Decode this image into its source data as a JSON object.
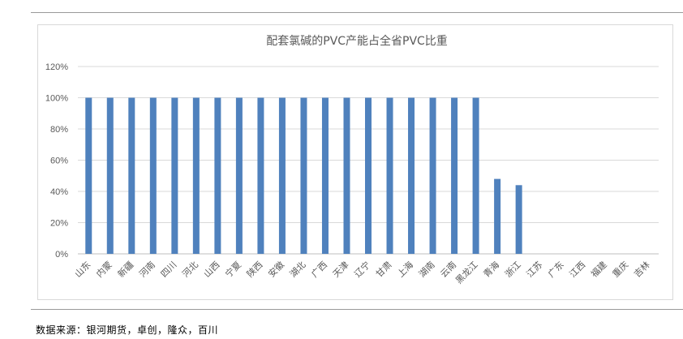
{
  "chart_data": {
    "type": "bar",
    "title": "配套氯碱的PVC产能占全省PVC比重",
    "categories": [
      "山东",
      "内蒙",
      "新疆",
      "河南",
      "四川",
      "河北",
      "山西",
      "宁夏",
      "陕西",
      "安徽",
      "湖北",
      "广西",
      "天津",
      "辽宁",
      "甘肃",
      "上海",
      "湖南",
      "云南",
      "黑龙江",
      "青海",
      "浙江",
      "江苏",
      "广东",
      "江西",
      "福建",
      "重庆",
      "吉林"
    ],
    "values": [
      100,
      100,
      100,
      100,
      100,
      100,
      100,
      100,
      100,
      100,
      100,
      100,
      100,
      100,
      100,
      100,
      100,
      100,
      100,
      48,
      44,
      0,
      0,
      0,
      0,
      0,
      0
    ],
    "yticks": [
      "0%",
      "20%",
      "40%",
      "60%",
      "80%",
      "100%",
      "120%"
    ],
    "ylim": [
      0,
      120
    ],
    "grid": true,
    "bar_color": "#4f81bd",
    "grid_color": "#d9d9d9",
    "tick_label_color": "#595959"
  },
  "footer": {
    "source": "数据来源：银河期货，卓创，隆众，百川"
  }
}
